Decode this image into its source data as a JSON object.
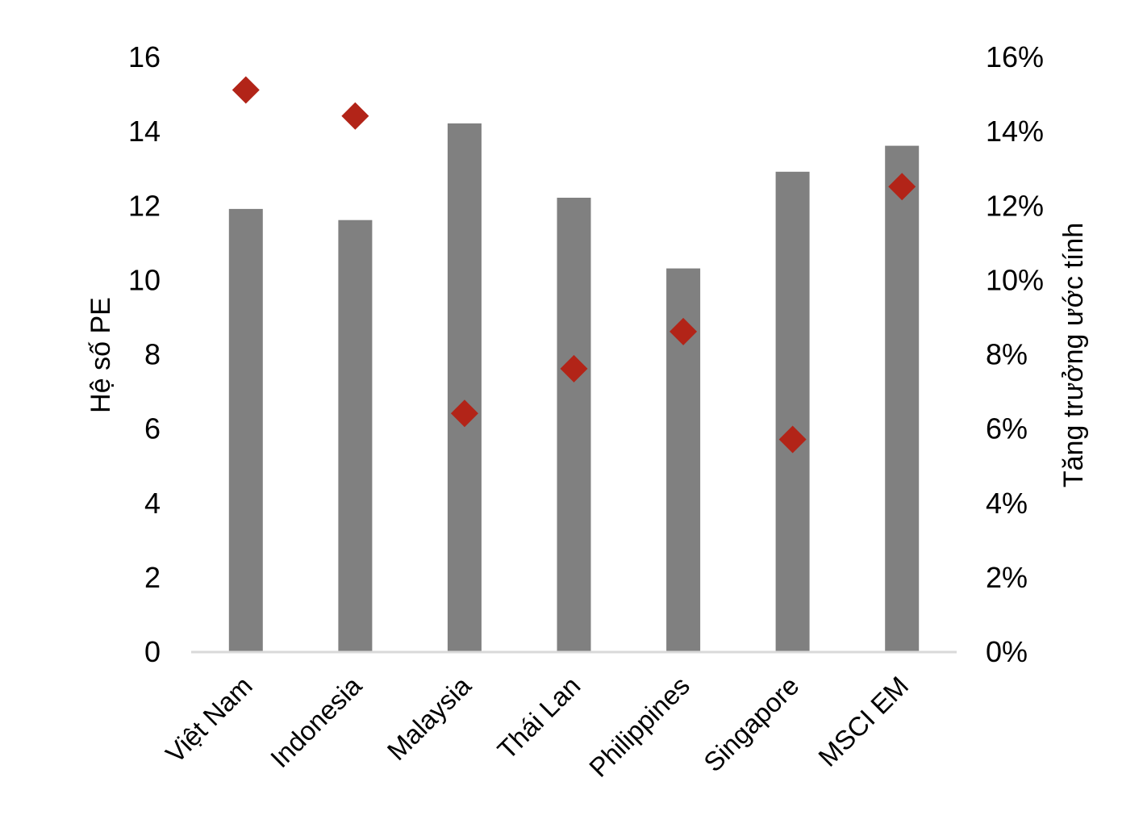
{
  "chart_data": {
    "type": "bar",
    "categories": [
      "Việt Nam",
      "Indonesia",
      "Malaysia",
      "Thái Lan",
      "Philippines",
      "Singapore",
      "MSCI EM"
    ],
    "series": [
      {
        "type": "bar",
        "axis": "left",
        "values": [
          11.9,
          11.6,
          14.2,
          12.2,
          10.3,
          12.9,
          13.6
        ],
        "color": "#808080"
      },
      {
        "type": "scatter",
        "axis": "right",
        "marker": "diamond",
        "values": [
          15.1,
          14.4,
          6.4,
          7.6,
          8.6,
          5.7,
          12.5
        ],
        "unit": "%",
        "color": "#b22418"
      }
    ],
    "ylabel": "Hệ số PE",
    "ylabel_right": "Tăng trưởng ước tính",
    "ylim": [
      0,
      16
    ],
    "ylim_right": [
      0,
      16
    ],
    "yticks": [
      "0",
      "2",
      "4",
      "6",
      "8",
      "10",
      "12",
      "14",
      "16"
    ],
    "yticks_right": [
      "0%",
      "2%",
      "4%",
      "6%",
      "8%",
      "10%",
      "12%",
      "14%",
      "16%"
    ],
    "grid": false,
    "legend": "none"
  }
}
